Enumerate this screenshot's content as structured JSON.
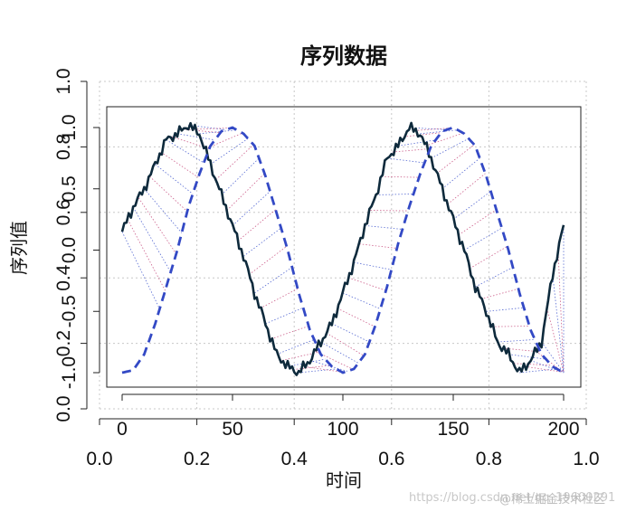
{
  "chart_data": {
    "type": "line",
    "title": "序列数据",
    "xlabel": "时间",
    "ylabel": "序列值",
    "x_ticks": [
      0,
      50,
      100,
      150,
      200
    ],
    "y_ticks": [
      -1.0,
      -0.5,
      0.0,
      0.5,
      1.0
    ],
    "outer_x_ticks": [
      "0.0",
      "0.2",
      "0.4",
      "0.6",
      "0.8",
      "1.0"
    ],
    "outer_y_ticks": [
      "0.0",
      "0.2",
      "0.4",
      "0.6",
      "0.8",
      "1.0"
    ],
    "xlim": [
      0,
      200
    ],
    "ylim": [
      -1.08,
      1.08
    ],
    "grid": true,
    "series": [
      {
        "style": "solid",
        "color": "#0e2a3c",
        "x": [
          0,
          5,
          10,
          15,
          20,
          25,
          30,
          35,
          40,
          45,
          50,
          55,
          60,
          65,
          70,
          75,
          80,
          85,
          90,
          95,
          100,
          105,
          110,
          115,
          120,
          125,
          130,
          135,
          140,
          145,
          150,
          155,
          160,
          165,
          170,
          175,
          180,
          185,
          190,
          195,
          200
        ],
        "values": [
          0.15,
          0.35,
          0.5,
          0.7,
          0.9,
          0.95,
          1.02,
          0.95,
          0.7,
          0.45,
          0.2,
          -0.05,
          -0.35,
          -0.6,
          -0.85,
          -0.95,
          -1.0,
          -0.9,
          -0.75,
          -0.6,
          -0.35,
          -0.1,
          0.2,
          0.45,
          0.75,
          0.85,
          1.0,
          0.95,
          0.75,
          0.5,
          0.25,
          0.0,
          -0.3,
          -0.5,
          -0.75,
          -0.85,
          -1.0,
          -0.9,
          -0.75,
          -0.2,
          0.2
        ]
      },
      {
        "style": "dashed",
        "color": "#3349c5",
        "x": [
          0,
          5,
          10,
          15,
          20,
          25,
          30,
          35,
          40,
          45,
          50,
          55,
          60,
          65,
          70,
          75,
          80,
          85,
          90,
          95,
          100,
          105,
          110,
          115,
          120,
          125,
          130,
          135,
          140,
          145,
          150,
          155,
          160,
          165,
          170,
          175,
          180,
          185,
          190,
          195,
          200
        ],
        "values": [
          -1.0,
          -0.98,
          -0.85,
          -0.6,
          -0.3,
          0.0,
          0.35,
          0.62,
          0.85,
          0.97,
          1.0,
          0.95,
          0.85,
          0.6,
          0.3,
          0.0,
          -0.35,
          -0.65,
          -0.85,
          -0.95,
          -1.0,
          -0.97,
          -0.85,
          -0.6,
          -0.3,
          0.05,
          0.35,
          0.62,
          0.85,
          0.97,
          1.0,
          0.95,
          0.85,
          0.6,
          0.3,
          0.0,
          -0.35,
          -0.65,
          -0.85,
          -0.95,
          -1.0
        ]
      }
    ],
    "connectors": {
      "colors": [
        "#2e47c8",
        "#c03a70"
      ],
      "style": "dotted"
    }
  },
  "watermark": {
    "blog": "https://blog.csdn.net/qq_19600291",
    "site": "@稀土掘金技术社区"
  }
}
